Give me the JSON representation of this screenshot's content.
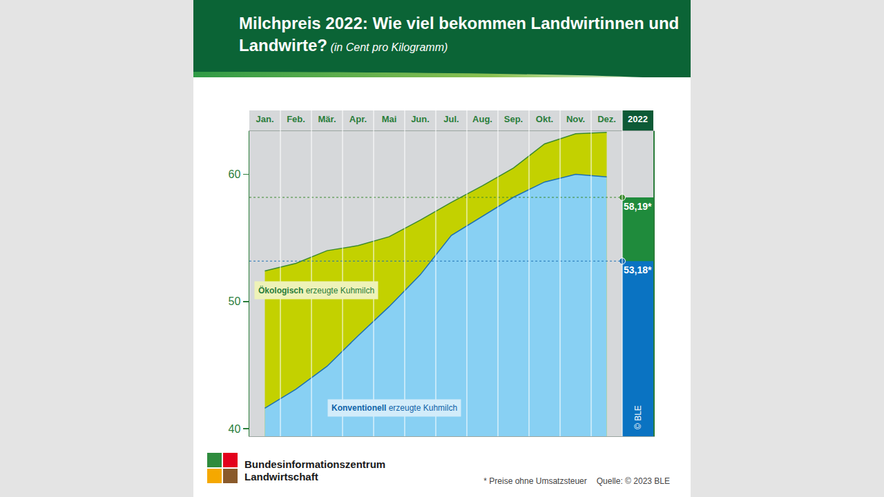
{
  "chart_data": {
    "type": "area",
    "title": "Milchpreis 2022: Wie viel bekommen Landwirtinnen und Landwirte?",
    "subtitle": "(in Cent pro Kilogramm)",
    "categories": [
      "Jan.",
      "Feb.",
      "Mär.",
      "Apr.",
      "Mai",
      "Jun.",
      "Jul.",
      "Aug.",
      "Sep.",
      "Okt.",
      "Nov.",
      "Dez."
    ],
    "average_category": "2022",
    "series": [
      {
        "name": "Ökologisch erzeugte Kuhmilch",
        "color": "#c3d100",
        "values": [
          52.4,
          53.0,
          54.0,
          54.4,
          55.1,
          56.4,
          57.8,
          59.1,
          60.5,
          62.4,
          63.2,
          63.3
        ],
        "average": 58.19,
        "average_label": "58,19*"
      },
      {
        "name": "Konventionell erzeugte Kuhmilch",
        "color": "#88d0f3",
        "values": [
          41.6,
          43.1,
          44.9,
          47.3,
          49.6,
          52.1,
          55.2,
          56.7,
          58.2,
          59.4,
          60.0,
          59.8
        ],
        "average": 53.18,
        "average_label": "53,18*"
      }
    ],
    "ylim": [
      39.4,
      63.4
    ],
    "yticks": [
      40,
      50,
      60
    ],
    "grid": false,
    "data_labels": true,
    "footnote": "* Preise ohne Umsatzsteuer",
    "source": "Quelle: © 2023 BLE",
    "publisher": "Bundesinformationszentrum Landwirtschaft",
    "credit": "© BLE"
  }
}
